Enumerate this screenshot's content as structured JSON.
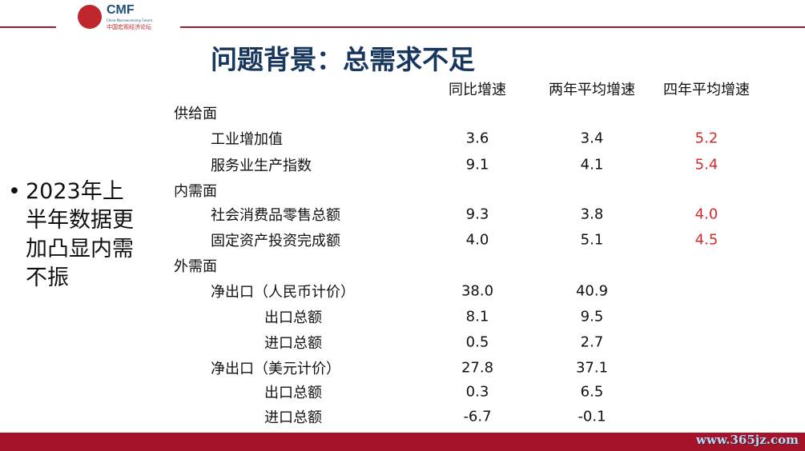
{
  "logo": {
    "brand": "CMF",
    "english": "China Macroeconomy Forum",
    "chinese": "中国宏观经济论坛"
  },
  "title": "问题背景：总需求不足",
  "bullet": "2023年上半年数据更加凸显内需不振",
  "columns": [
    "同比增速",
    "两年平均增速",
    "四年平均增速"
  ],
  "rows": [
    {
      "label": "供给面",
      "level": 0,
      "values": [
        "",
        "",
        ""
      ]
    },
    {
      "label": "工业增加值",
      "level": 1,
      "values": [
        "3.6",
        "3.4",
        "5.2"
      ]
    },
    {
      "label": "服务业生产指数",
      "level": 1,
      "values": [
        "9.1",
        "4.1",
        "5.4"
      ]
    },
    {
      "label": "内需面",
      "level": 0,
      "values": [
        "",
        "",
        ""
      ]
    },
    {
      "label": "社会消费品零售总额",
      "level": 1,
      "values": [
        "9.3",
        "3.8",
        "4.0"
      ]
    },
    {
      "label": "固定资产投资完成额",
      "level": 1,
      "values": [
        "4.0",
        "5.1",
        "4.5"
      ]
    },
    {
      "label": "外需面",
      "level": 0,
      "values": [
        "",
        "",
        ""
      ]
    },
    {
      "label": "净出口（人民币计价）",
      "level": 1,
      "values": [
        "38.0",
        "40.9",
        ""
      ]
    },
    {
      "label": "出口总额",
      "level": 2,
      "values": [
        "8.1",
        "9.5",
        ""
      ]
    },
    {
      "label": "进口总额",
      "level": 2,
      "values": [
        "0.5",
        "2.7",
        ""
      ]
    },
    {
      "label": "净出口（美元计价）",
      "level": 1,
      "values": [
        "27.8",
        "37.1",
        ""
      ]
    },
    {
      "label": "出口总额",
      "level": 2,
      "values": [
        "0.3",
        "6.5",
        ""
      ]
    },
    {
      "label": "进口总额",
      "level": 2,
      "values": [
        "-6.7",
        "-0.1",
        ""
      ]
    }
  ],
  "colors": {
    "accent": "#9b1b30",
    "title": "#17375e",
    "highlight": "#d42a2a"
  },
  "watermark": "www.365jz.com"
}
